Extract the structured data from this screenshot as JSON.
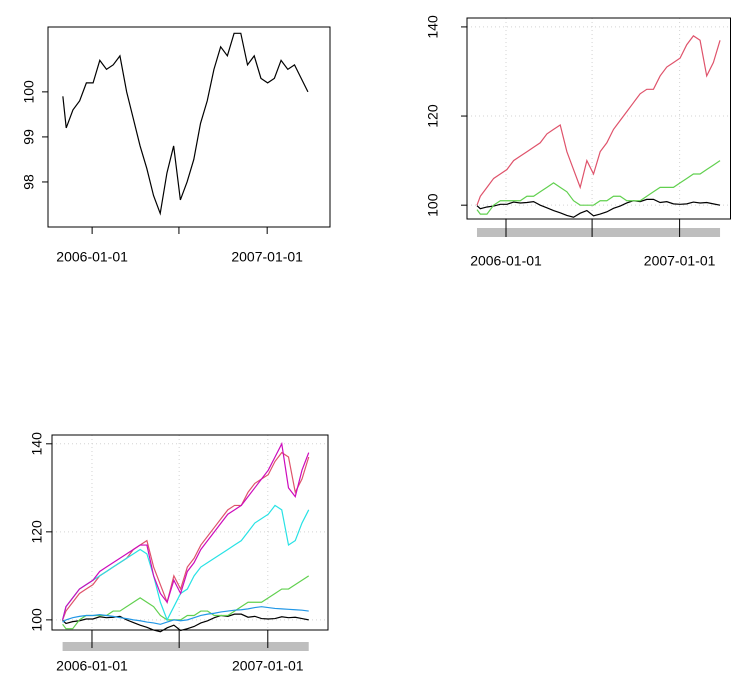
{
  "chart_data": [
    {
      "type": "line",
      "x": [
        "2005-11-01",
        "2005-11-08",
        "2005-11-22",
        "2005-12-06",
        "2005-12-20",
        "2006-01-03",
        "2006-01-17",
        "2006-01-31",
        "2006-02-14",
        "2006-02-28",
        "2006-03-14",
        "2006-03-28",
        "2006-04-11",
        "2006-04-25",
        "2006-05-09",
        "2006-05-23",
        "2006-06-06",
        "2006-06-20",
        "2006-07-04",
        "2006-07-18",
        "2006-08-01",
        "2006-08-15",
        "2006-08-29",
        "2006-09-12",
        "2006-09-26",
        "2006-10-10",
        "2006-10-24",
        "2006-11-07",
        "2006-11-21",
        "2006-12-05",
        "2006-12-19",
        "2007-01-02",
        "2007-01-16",
        "2007-01-30",
        "2007-02-13",
        "2007-02-27",
        "2007-03-13",
        "2007-03-27"
      ],
      "xlim": [
        "2005-10-01",
        "2007-05-12"
      ],
      "xticks": [
        "2006-01-01",
        {
          "value": "2006-07-01",
          "label": null
        },
        "2007-01-01"
      ],
      "ylim": [
        97.0,
        101.44
      ],
      "yticks": [
        98,
        99,
        100
      ],
      "grid": false,
      "range_bar": false,
      "series": [
        {
          "color": "#000000",
          "values": [
            99.9,
            99.2,
            99.6,
            99.8,
            100.2,
            100.2,
            100.7,
            100.5,
            100.6,
            100.8,
            100.0,
            99.4,
            98.8,
            98.3,
            97.7,
            97.3,
            98.2,
            98.8,
            97.6,
            98.0,
            98.5,
            99.3,
            99.8,
            100.5,
            101.0,
            100.8,
            101.3,
            101.3,
            100.6,
            100.8,
            100.3,
            100.2,
            100.3,
            100.7,
            100.5,
            100.6,
            100.3,
            100.0
          ]
        }
      ]
    },
    {
      "type": "line",
      "x": [
        "2005-11-01",
        "2005-11-08",
        "2005-11-22",
        "2005-12-06",
        "2005-12-20",
        "2006-01-03",
        "2006-01-17",
        "2006-01-31",
        "2006-02-14",
        "2006-02-28",
        "2006-03-14",
        "2006-03-28",
        "2006-04-11",
        "2006-04-25",
        "2006-05-09",
        "2006-05-23",
        "2006-06-06",
        "2006-06-20",
        "2006-07-04",
        "2006-07-18",
        "2006-08-01",
        "2006-08-15",
        "2006-08-29",
        "2006-09-12",
        "2006-09-26",
        "2006-10-10",
        "2006-10-24",
        "2006-11-07",
        "2006-11-21",
        "2006-12-05",
        "2006-12-19",
        "2007-01-02",
        "2007-01-16",
        "2007-01-30",
        "2007-02-13",
        "2007-02-27",
        "2007-03-13",
        "2007-03-27"
      ],
      "xlim": [
        "2005-10-11",
        "2007-04-18"
      ],
      "xticks": [
        "2006-01-01",
        {
          "value": "2006-07-01",
          "label": null
        },
        "2007-01-01"
      ],
      "ylim": [
        96.9,
        142.0
      ],
      "yticks": [
        100,
        120,
        140
      ],
      "grid": true,
      "range_bar": true,
      "series": [
        {
          "color": "#000000",
          "values": [
            99.9,
            99.2,
            99.6,
            99.8,
            100.2,
            100.2,
            100.7,
            100.5,
            100.6,
            100.8,
            100.0,
            99.4,
            98.8,
            98.3,
            97.7,
            97.3,
            98.2,
            98.8,
            97.6,
            98.0,
            98.5,
            99.3,
            99.8,
            100.5,
            101.0,
            100.8,
            101.3,
            101.3,
            100.6,
            100.8,
            100.3,
            100.2,
            100.3,
            100.7,
            100.5,
            100.6,
            100.3,
            100.0
          ]
        },
        {
          "color": "#DF536B",
          "values": [
            100,
            102,
            104,
            106,
            107,
            108,
            110,
            111,
            112,
            113,
            114,
            116,
            117,
            118,
            112,
            108,
            104,
            110,
            107,
            112,
            114,
            117,
            119,
            121,
            123,
            125,
            126,
            126,
            129,
            131,
            132,
            133,
            136,
            138,
            137,
            129,
            132,
            137
          ]
        },
        {
          "color": "#61D04F",
          "values": [
            99,
            98,
            98,
            100,
            101,
            101,
            101,
            101,
            102,
            102,
            103,
            104,
            105,
            104,
            103,
            101,
            100,
            100,
            100,
            101,
            101,
            102,
            102,
            101,
            101,
            101,
            102,
            103,
            104,
            104,
            104,
            105,
            106,
            107,
            107,
            108,
            109,
            110
          ]
        }
      ]
    },
    {
      "type": "line",
      "x": [
        "2005-11-01",
        "2005-11-08",
        "2005-11-22",
        "2005-12-06",
        "2005-12-20",
        "2006-01-03",
        "2006-01-17",
        "2006-01-31",
        "2006-02-14",
        "2006-02-28",
        "2006-03-14",
        "2006-03-28",
        "2006-04-11",
        "2006-04-25",
        "2006-05-09",
        "2006-05-23",
        "2006-06-06",
        "2006-06-20",
        "2006-07-04",
        "2006-07-18",
        "2006-08-01",
        "2006-08-15",
        "2006-08-29",
        "2006-09-12",
        "2006-09-26",
        "2006-10-10",
        "2006-10-24",
        "2006-11-07",
        "2006-11-21",
        "2006-12-05",
        "2006-12-19",
        "2007-01-02",
        "2007-01-16",
        "2007-01-30",
        "2007-02-13",
        "2007-02-27",
        "2007-03-13",
        "2007-03-27"
      ],
      "xlim": [
        "2005-10-10",
        "2007-05-06"
      ],
      "xticks": [
        "2006-01-01",
        {
          "value": "2006-07-01",
          "label": null
        },
        "2007-01-01"
      ],
      "ylim": [
        97.7,
        142.0
      ],
      "yticks": [
        100,
        120,
        140
      ],
      "grid": true,
      "range_bar": true,
      "series": [
        {
          "color": "#000000",
          "values": [
            99.9,
            99.2,
            99.6,
            99.8,
            100.2,
            100.2,
            100.7,
            100.5,
            100.6,
            100.8,
            100.0,
            99.4,
            98.8,
            98.3,
            97.7,
            97.3,
            98.2,
            98.8,
            97.6,
            98.0,
            98.5,
            99.3,
            99.8,
            100.5,
            101.0,
            100.8,
            101.3,
            101.3,
            100.6,
            100.8,
            100.3,
            100.2,
            100.3,
            100.7,
            100.5,
            100.6,
            100.3,
            100.0
          ]
        },
        {
          "color": "#DF536B",
          "values": [
            100,
            102,
            104,
            106,
            107,
            108,
            110,
            111,
            112,
            113,
            114,
            116,
            117,
            118,
            112,
            108,
            104,
            110,
            107,
            112,
            114,
            117,
            119,
            121,
            123,
            125,
            126,
            126,
            129,
            131,
            132,
            133,
            136,
            138,
            137,
            129,
            132,
            137
          ]
        },
        {
          "color": "#61D04F",
          "values": [
            99,
            98,
            98,
            100,
            101,
            101,
            101,
            101,
            102,
            102,
            103,
            104,
            105,
            104,
            103,
            101,
            100,
            100,
            100,
            101,
            101,
            102,
            102,
            101,
            101,
            101,
            102,
            103,
            104,
            104,
            104,
            105,
            106,
            107,
            107,
            108,
            109,
            110
          ]
        },
        {
          "color": "#2297E6",
          "values": [
            99.5,
            100,
            100.5,
            100.8,
            101,
            101,
            101.2,
            101,
            100.8,
            100.5,
            100.3,
            100,
            99.8,
            99.5,
            99.3,
            99,
            99.5,
            100,
            99.8,
            100,
            100.5,
            101,
            101.3,
            101.5,
            101.8,
            102,
            102.2,
            102.3,
            102.5,
            102.8,
            103,
            102.8,
            102.6,
            102.5,
            102.4,
            102.3,
            102.2,
            102
          ]
        },
        {
          "color": "#28E2E5",
          "values": [
            100,
            103,
            105,
            107,
            108,
            109,
            110,
            111,
            112,
            113,
            114,
            115,
            116,
            115,
            110,
            104,
            100,
            103,
            106,
            107,
            110,
            112,
            113,
            114,
            115,
            116,
            117,
            118,
            120,
            122,
            123,
            124,
            126,
            125,
            117,
            118,
            122,
            125
          ]
        },
        {
          "color": "#CD0BBC",
          "values": [
            100,
            103,
            105,
            107,
            108,
            109,
            111,
            112,
            113,
            114,
            115,
            116,
            117,
            117,
            110,
            106,
            104,
            109,
            106,
            111,
            113,
            116,
            118,
            120,
            122,
            124,
            125,
            126,
            128,
            130,
            132,
            134,
            137,
            140,
            130,
            128,
            134,
            138
          ]
        }
      ]
    }
  ]
}
